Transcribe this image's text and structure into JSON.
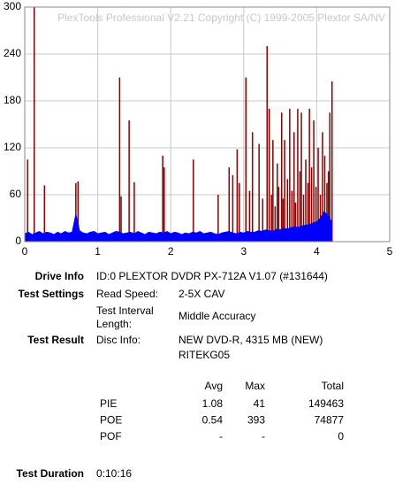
{
  "chart_data": {
    "type": "spikes",
    "title": "PlexTools Professional V2.21 Copyright (C) 1999-2005 Plextor SA/NV",
    "xlim": [
      0,
      5
    ],
    "xticks": [
      0,
      1,
      2,
      3,
      4,
      5
    ],
    "ylim": [
      0,
      300
    ],
    "yticks": [
      0,
      60,
      120,
      180,
      240,
      300
    ],
    "grid": true,
    "series": [
      {
        "style": "spike",
        "color": "#8b0000",
        "x": [
          0.04,
          0.13,
          0.27,
          0.7,
          0.73,
          1.3,
          1.32,
          1.43,
          1.5,
          1.89,
          1.91,
          2.31,
          2.65,
          2.8,
          2.85,
          2.91,
          2.94,
          3.03,
          3.08,
          3.12,
          3.21,
          3.26,
          3.32,
          3.35,
          3.38,
          3.4,
          3.43,
          3.46,
          3.48,
          3.52,
          3.54,
          3.56,
          3.6,
          3.63,
          3.66,
          3.69,
          3.71,
          3.74,
          3.77,
          3.79,
          3.82,
          3.85,
          3.88,
          3.9,
          3.93,
          3.96,
          3.99,
          4.02,
          4.05,
          4.08,
          4.11,
          4.14,
          4.16,
          4.18,
          4.21
        ],
        "values": [
          105,
          300,
          72,
          75,
          77,
          210,
          58,
          155,
          76,
          110,
          95,
          105,
          60,
          95,
          85,
          118,
          75,
          210,
          65,
          140,
          125,
          55,
          250,
          170,
          60,
          130,
          45,
          100,
          70,
          165,
          55,
          130,
          80,
          170,
          65,
          140,
          50,
          170,
          90,
          165,
          60,
          105,
          75,
          170,
          95,
          155,
          70,
          120,
          60,
          140,
          110,
          75,
          90,
          165,
          205
        ]
      },
      {
        "style": "area",
        "color": "#0000ff",
        "x": [
          0,
          0.05,
          0.1,
          0.15,
          0.2,
          0.25,
          0.3,
          0.35,
          0.4,
          0.45,
          0.5,
          0.55,
          0.6,
          0.65,
          0.7,
          0.75,
          0.8,
          0.85,
          0.9,
          0.95,
          1,
          1.05,
          1.1,
          1.15,
          1.2,
          1.25,
          1.3,
          1.35,
          1.4,
          1.45,
          1.5,
          1.55,
          1.6,
          1.65,
          1.7,
          1.75,
          1.8,
          1.85,
          1.9,
          1.95,
          2,
          2.05,
          2.1,
          2.15,
          2.2,
          2.25,
          2.3,
          2.35,
          2.4,
          2.45,
          2.5,
          2.55,
          2.6,
          2.65,
          2.7,
          2.75,
          2.8,
          2.85,
          2.9,
          2.95,
          3,
          3.05,
          3.1,
          3.15,
          3.2,
          3.25,
          3.3,
          3.35,
          3.4,
          3.45,
          3.5,
          3.55,
          3.6,
          3.65,
          3.7,
          3.75,
          3.8,
          3.85,
          3.9,
          3.95,
          4,
          4.05,
          4.1,
          4.15,
          4.2
        ],
        "values": [
          10,
          12,
          9,
          11,
          13,
          10,
          12,
          11,
          9,
          12,
          10,
          13,
          11,
          12,
          35,
          14,
          11,
          10,
          12,
          13,
          10,
          11,
          12,
          9,
          11,
          13,
          12,
          10,
          11,
          12,
          10,
          13,
          11,
          9,
          12,
          11,
          10,
          12,
          11,
          13,
          10,
          12,
          11,
          9,
          11,
          10,
          12,
          11,
          13,
          10,
          11,
          12,
          10,
          9,
          11,
          12,
          13,
          11,
          10,
          12,
          11,
          13,
          12,
          12,
          14,
          13,
          15,
          14,
          13,
          16,
          15,
          17,
          16,
          18,
          19,
          18,
          20,
          21,
          22,
          24,
          25,
          30,
          38,
          34,
          26
        ]
      }
    ]
  },
  "report": {
    "drive_info": {
      "label": "Drive Info",
      "value": "ID:0 PLEXTOR DVDR PX-712A V1.07 (#131644)"
    },
    "test_settings": {
      "label": "Test Settings",
      "read_speed_label": "Read Speed:",
      "read_speed": "2-5X CAV",
      "interval_label": [
        "Test Interval",
        "Length:"
      ],
      "interval": "Middle Accuracy"
    },
    "test_result": {
      "label": "Test Result",
      "disc_info_label": "Disc Info:",
      "disc_info": [
        "NEW DVD-R, 4315 MB (NEW)",
        "RITEKG05"
      ]
    },
    "table": {
      "header": [
        "Avg",
        "Max",
        "Total"
      ],
      "rows": [
        [
          "PIE",
          "1.08",
          "41",
          "149463"
        ],
        [
          "POE",
          "0.54",
          "393",
          "74877"
        ],
        [
          "POF",
          "-",
          "-",
          "0"
        ]
      ]
    },
    "test_duration": {
      "label": "Test Duration",
      "value": "0:10:16"
    }
  }
}
